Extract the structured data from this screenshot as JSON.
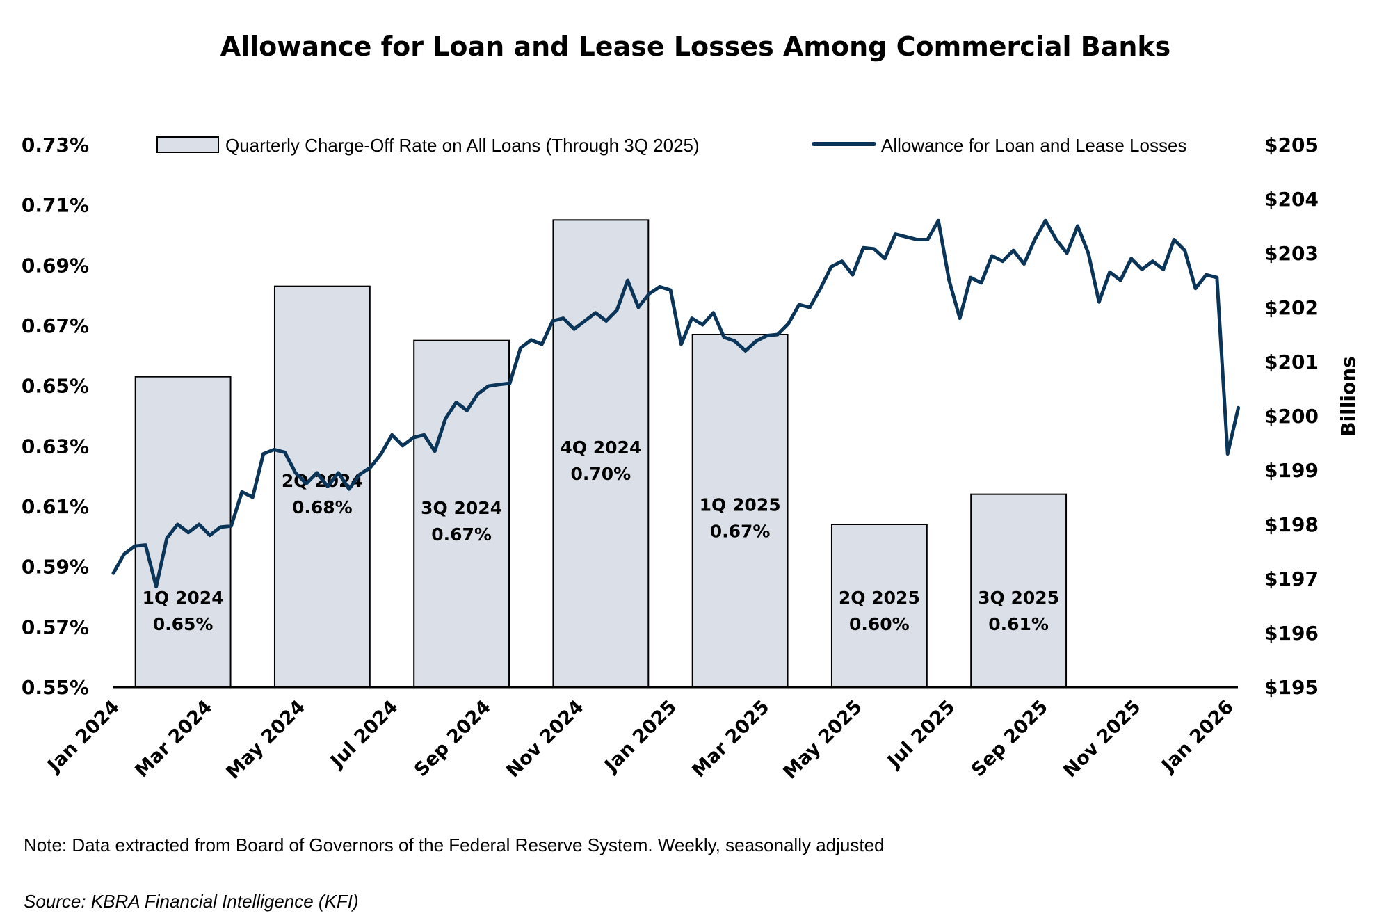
{
  "colors": {
    "bar_fill": "#dbe0e8",
    "bar_stroke": "#000000",
    "line": "#0b3558",
    "axis": "#000000",
    "text": "#000000"
  },
  "footer": {
    "note": "Note: Data extracted from Board of Governors of the Federal Reserve System. Weekly, seasonally adjusted",
    "source": "Source: KBRA Financial Intelligence (KFI)"
  },
  "chart_data": {
    "type": "bar+line",
    "title": "Allowance for Loan and Lease Losses Among Commercial Banks",
    "legend": {
      "position": "top",
      "bar_label": "Quarterly Charge-Off Rate on All Loans (Through 3Q 2025)",
      "line_label": "Allowance for Loan and Lease Losses"
    },
    "y_left": {
      "min": 0.55,
      "max": 0.73,
      "ticks": [
        "0.55%",
        "0.57%",
        "0.59%",
        "0.61%",
        "0.63%",
        "0.65%",
        "0.67%",
        "0.69%",
        "0.71%",
        "0.73%"
      ]
    },
    "y_right": {
      "min": 195,
      "max": 205,
      "label": "Billions",
      "ticks": [
        "$195",
        "$196",
        "$197",
        "$198",
        "$199",
        "$200",
        "$201",
        "$202",
        "$203",
        "$204",
        "$205"
      ]
    },
    "x_axis": {
      "start": 0,
      "end": 24,
      "ticks": [
        "Jan 2024",
        "Mar 2024",
        "May 2024",
        "Jul 2024",
        "Sep 2024",
        "Nov 2024",
        "Jan 2025",
        "Mar 2025",
        "May 2025",
        "Jul 2025",
        "Sep 2025",
        "Nov 2025",
        "Jan 2026"
      ],
      "tick_positions": [
        0,
        2,
        4,
        6,
        8,
        10,
        12,
        14,
        16,
        18,
        20,
        22,
        24
      ]
    },
    "bars": [
      {
        "quarter": "1Q 2024",
        "label": "0.65%",
        "value": 0.653,
        "center": 1.5
      },
      {
        "quarter": "2Q 2024",
        "label": "0.68%",
        "value": 0.683,
        "center": 4.5
      },
      {
        "quarter": "3Q 2024",
        "label": "0.67%",
        "value": 0.665,
        "center": 7.5
      },
      {
        "quarter": "4Q 2024",
        "label": "0.70%",
        "value": 0.705,
        "center": 10.5
      },
      {
        "quarter": "1Q 2025",
        "label": "0.67%",
        "value": 0.667,
        "center": 13.5
      },
      {
        "quarter": "2Q 2025",
        "label": "0.60%",
        "value": 0.604,
        "center": 16.5
      },
      {
        "quarter": "3Q 2025",
        "label": "0.61%",
        "value": 0.614,
        "center": 19.5
      }
    ],
    "bar_width_months": 2.05,
    "line_series": {
      "name": "Allowance for Loan and Lease Losses",
      "start_month": 0,
      "step_months": 0.2308,
      "values": [
        197.1,
        197.45,
        197.6,
        197.62,
        196.85,
        197.75,
        198.0,
        197.85,
        198.0,
        197.8,
        197.95,
        197.97,
        198.6,
        198.5,
        199.3,
        199.38,
        199.33,
        198.95,
        198.75,
        198.95,
        198.7,
        198.95,
        198.65,
        198.92,
        199.05,
        199.3,
        199.65,
        199.45,
        199.6,
        199.65,
        199.35,
        199.95,
        200.25,
        200.1,
        200.4,
        200.55,
        200.58,
        200.6,
        201.25,
        201.4,
        201.32,
        201.75,
        201.8,
        201.6,
        201.75,
        201.9,
        201.75,
        201.95,
        202.5,
        202.0,
        202.25,
        202.38,
        202.32,
        201.32,
        201.8,
        201.68,
        201.9,
        201.45,
        201.38,
        201.2,
        201.38,
        201.48,
        201.5,
        201.7,
        202.05,
        202.0,
        202.35,
        202.75,
        202.85,
        202.6,
        203.1,
        203.08,
        202.9,
        203.35,
        203.3,
        203.25,
        203.25,
        203.6,
        202.5,
        201.8,
        202.55,
        202.45,
        202.95,
        202.85,
        203.05,
        202.8,
        203.25,
        203.6,
        203.25,
        203.0,
        203.5,
        203.0,
        202.1,
        202.65,
        202.5,
        202.9,
        202.7,
        202.85,
        202.7,
        203.25,
        203.05,
        202.35,
        202.6,
        202.55,
        199.3,
        200.15
      ]
    }
  }
}
